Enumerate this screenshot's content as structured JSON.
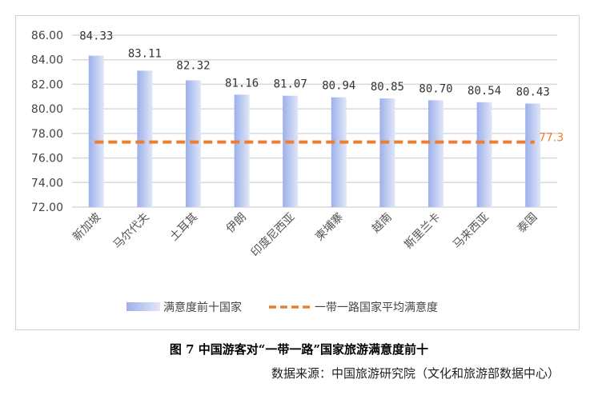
{
  "chart_data": {
    "type": "bar",
    "categories": [
      "新加坡",
      "马尔代夫",
      "土耳其",
      "伊朗",
      "印度尼西亚",
      "柬埔寨",
      "越南",
      "斯里兰卡",
      "马来西亚",
      "泰国"
    ],
    "series": [
      {
        "name": "满意度前十国家",
        "type": "bar",
        "values": [
          84.33,
          83.11,
          82.32,
          81.16,
          81.07,
          80.94,
          80.85,
          80.7,
          80.54,
          80.43
        ],
        "color": "#9fb3ec"
      },
      {
        "name": "一带一路国家平均满意度",
        "type": "line",
        "style": "dashed",
        "value": 77.3,
        "label": "77.3",
        "color": "#ed7d31"
      }
    ],
    "yticks": [
      "72.00",
      "74.00",
      "76.00",
      "78.00",
      "80.00",
      "82.00",
      "84.00",
      "86.00"
    ],
    "ylim": [
      72,
      86
    ],
    "grid": true,
    "legend": "bottom"
  },
  "caption": "图 7  中国游客对“一带一路”国家旅游满意度前十",
  "source": "数据来源：中国旅游研究院（文化和旅游部数据中心）"
}
